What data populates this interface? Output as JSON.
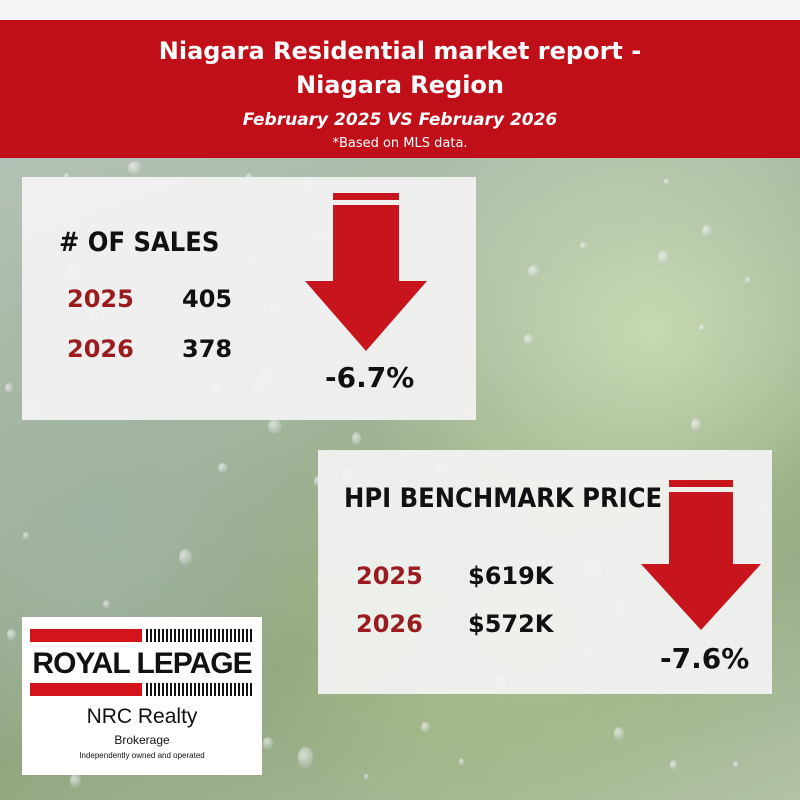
{
  "header": {
    "title_line1": "Niagara Residential market report -",
    "title_line2": "Niagara Region",
    "subtitle": "February 2025 VS February 2026",
    "note": "*Based on MLS data."
  },
  "sales_card": {
    "title": "# OF SALES",
    "rows": [
      {
        "year": "2025",
        "value": "405"
      },
      {
        "year": "2026",
        "value": "378"
      }
    ],
    "change": "-6.7%",
    "arrow_icon": "down-arrow-icon"
  },
  "hpi_card": {
    "title": "HPI BENCHMARK PRICE",
    "rows": [
      {
        "year": "2025",
        "value": "$619K"
      },
      {
        "year": "2026",
        "value": "$572K"
      }
    ],
    "change": "-7.6%",
    "arrow_icon": "down-arrow-icon"
  },
  "logo": {
    "brand": "ROYAL LEPAGE",
    "office": "NRC Realty",
    "type": "Brokerage",
    "tagline": "Independently owned and operated"
  },
  "colors": {
    "header_red": "#c10f19",
    "year_red": "#9b1c20",
    "arrow_red": "#c8141d"
  }
}
